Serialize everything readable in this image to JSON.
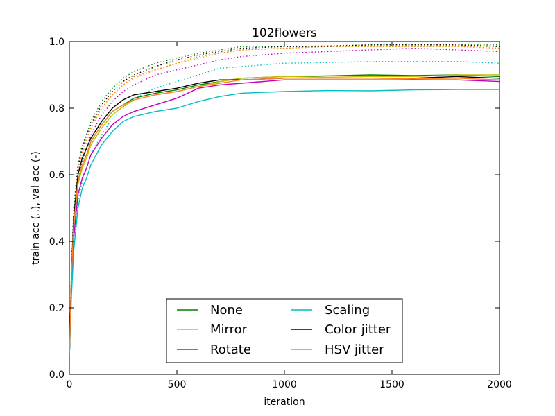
{
  "chart_data": {
    "type": "line",
    "title": "102flowers",
    "xlabel": "iteration",
    "ylabel": "train acc (..), val acc (-)",
    "xlim": [
      0,
      2000
    ],
    "ylim": [
      0.0,
      1.0
    ],
    "xticks": [
      0,
      500,
      1000,
      1500,
      2000
    ],
    "yticks": [
      0.0,
      0.2,
      0.4,
      0.6,
      0.8,
      1.0
    ],
    "xtick_labels": [
      "0",
      "500",
      "1000",
      "1500",
      "2000"
    ],
    "ytick_labels": [
      "0.0",
      "0.2",
      "0.4",
      "0.6",
      "0.8",
      "1.0"
    ],
    "grid": false,
    "legend": {
      "placement": "lower-center",
      "columns": 2
    },
    "x": [
      0,
      10,
      20,
      40,
      60,
      80,
      100,
      150,
      200,
      250,
      300,
      400,
      500,
      600,
      700,
      800,
      1000,
      1200,
      1400,
      1600,
      1800,
      2000
    ],
    "series": [
      {
        "name": "None",
        "color": "#008000",
        "val": [
          0.05,
          0.3,
          0.45,
          0.58,
          0.63,
          0.66,
          0.7,
          0.75,
          0.79,
          0.81,
          0.83,
          0.845,
          0.855,
          0.87,
          0.88,
          0.89,
          0.895,
          0.897,
          0.9,
          0.898,
          0.9,
          0.895
        ],
        "train": [
          0.05,
          0.33,
          0.5,
          0.63,
          0.69,
          0.72,
          0.76,
          0.82,
          0.86,
          0.89,
          0.91,
          0.935,
          0.95,
          0.965,
          0.975,
          0.985,
          0.985,
          0.987,
          0.99,
          0.99,
          0.99,
          0.99
        ]
      },
      {
        "name": "Mirror",
        "color": "#bfbf00",
        "val": [
          0.05,
          0.29,
          0.44,
          0.57,
          0.62,
          0.65,
          0.69,
          0.74,
          0.78,
          0.805,
          0.825,
          0.84,
          0.85,
          0.865,
          0.88,
          0.89,
          0.895,
          0.893,
          0.895,
          0.895,
          0.9,
          0.9
        ],
        "train": [
          0.05,
          0.3,
          0.46,
          0.6,
          0.66,
          0.7,
          0.74,
          0.8,
          0.84,
          0.87,
          0.89,
          0.915,
          0.935,
          0.95,
          0.965,
          0.975,
          0.98,
          0.985,
          0.985,
          0.985,
          0.985,
          0.985
        ]
      },
      {
        "name": "Rotate",
        "color": "#bf00bf",
        "val": [
          0.05,
          0.27,
          0.41,
          0.54,
          0.59,
          0.62,
          0.66,
          0.71,
          0.75,
          0.775,
          0.79,
          0.81,
          0.83,
          0.86,
          0.87,
          0.875,
          0.885,
          0.885,
          0.885,
          0.885,
          0.885,
          0.88
        ],
        "train": [
          0.05,
          0.29,
          0.45,
          0.58,
          0.64,
          0.68,
          0.72,
          0.78,
          0.82,
          0.85,
          0.87,
          0.9,
          0.915,
          0.93,
          0.945,
          0.955,
          0.965,
          0.97,
          0.975,
          0.98,
          0.975,
          0.97
        ]
      },
      {
        "name": "Scaling",
        "color": "#00bfbf",
        "val": [
          0.05,
          0.24,
          0.37,
          0.5,
          0.56,
          0.59,
          0.63,
          0.69,
          0.73,
          0.76,
          0.775,
          0.79,
          0.8,
          0.82,
          0.835,
          0.845,
          0.85,
          0.853,
          0.852,
          0.855,
          0.856,
          0.856
        ],
        "train": [
          0.05,
          0.25,
          0.39,
          0.52,
          0.58,
          0.62,
          0.66,
          0.72,
          0.77,
          0.8,
          0.83,
          0.86,
          0.88,
          0.9,
          0.92,
          0.925,
          0.935,
          0.937,
          0.94,
          0.94,
          0.94,
          0.935
        ]
      },
      {
        "name": "Color jitter",
        "color": "#000000",
        "val": [
          0.05,
          0.31,
          0.47,
          0.6,
          0.65,
          0.68,
          0.71,
          0.76,
          0.8,
          0.825,
          0.84,
          0.85,
          0.86,
          0.875,
          0.885,
          0.885,
          0.89,
          0.89,
          0.89,
          0.89,
          0.895,
          0.89
        ],
        "train": [
          0.05,
          0.32,
          0.48,
          0.62,
          0.68,
          0.72,
          0.75,
          0.81,
          0.85,
          0.88,
          0.9,
          0.925,
          0.945,
          0.96,
          0.97,
          0.98,
          0.985,
          0.985,
          0.99,
          0.99,
          0.99,
          0.985
        ]
      },
      {
        "name": "HSV jitter",
        "color": "#ff7f27",
        "val": [
          0.05,
          0.3,
          0.45,
          0.58,
          0.63,
          0.66,
          0.7,
          0.75,
          0.79,
          0.81,
          0.825,
          0.84,
          0.85,
          0.865,
          0.875,
          0.885,
          0.89,
          0.89,
          0.89,
          0.888,
          0.89,
          0.885
        ],
        "train": [
          0.05,
          0.31,
          0.47,
          0.61,
          0.67,
          0.71,
          0.74,
          0.8,
          0.84,
          0.87,
          0.895,
          0.915,
          0.935,
          0.955,
          0.965,
          0.975,
          0.98,
          0.985,
          0.985,
          0.985,
          0.985,
          0.98
        ]
      }
    ]
  }
}
